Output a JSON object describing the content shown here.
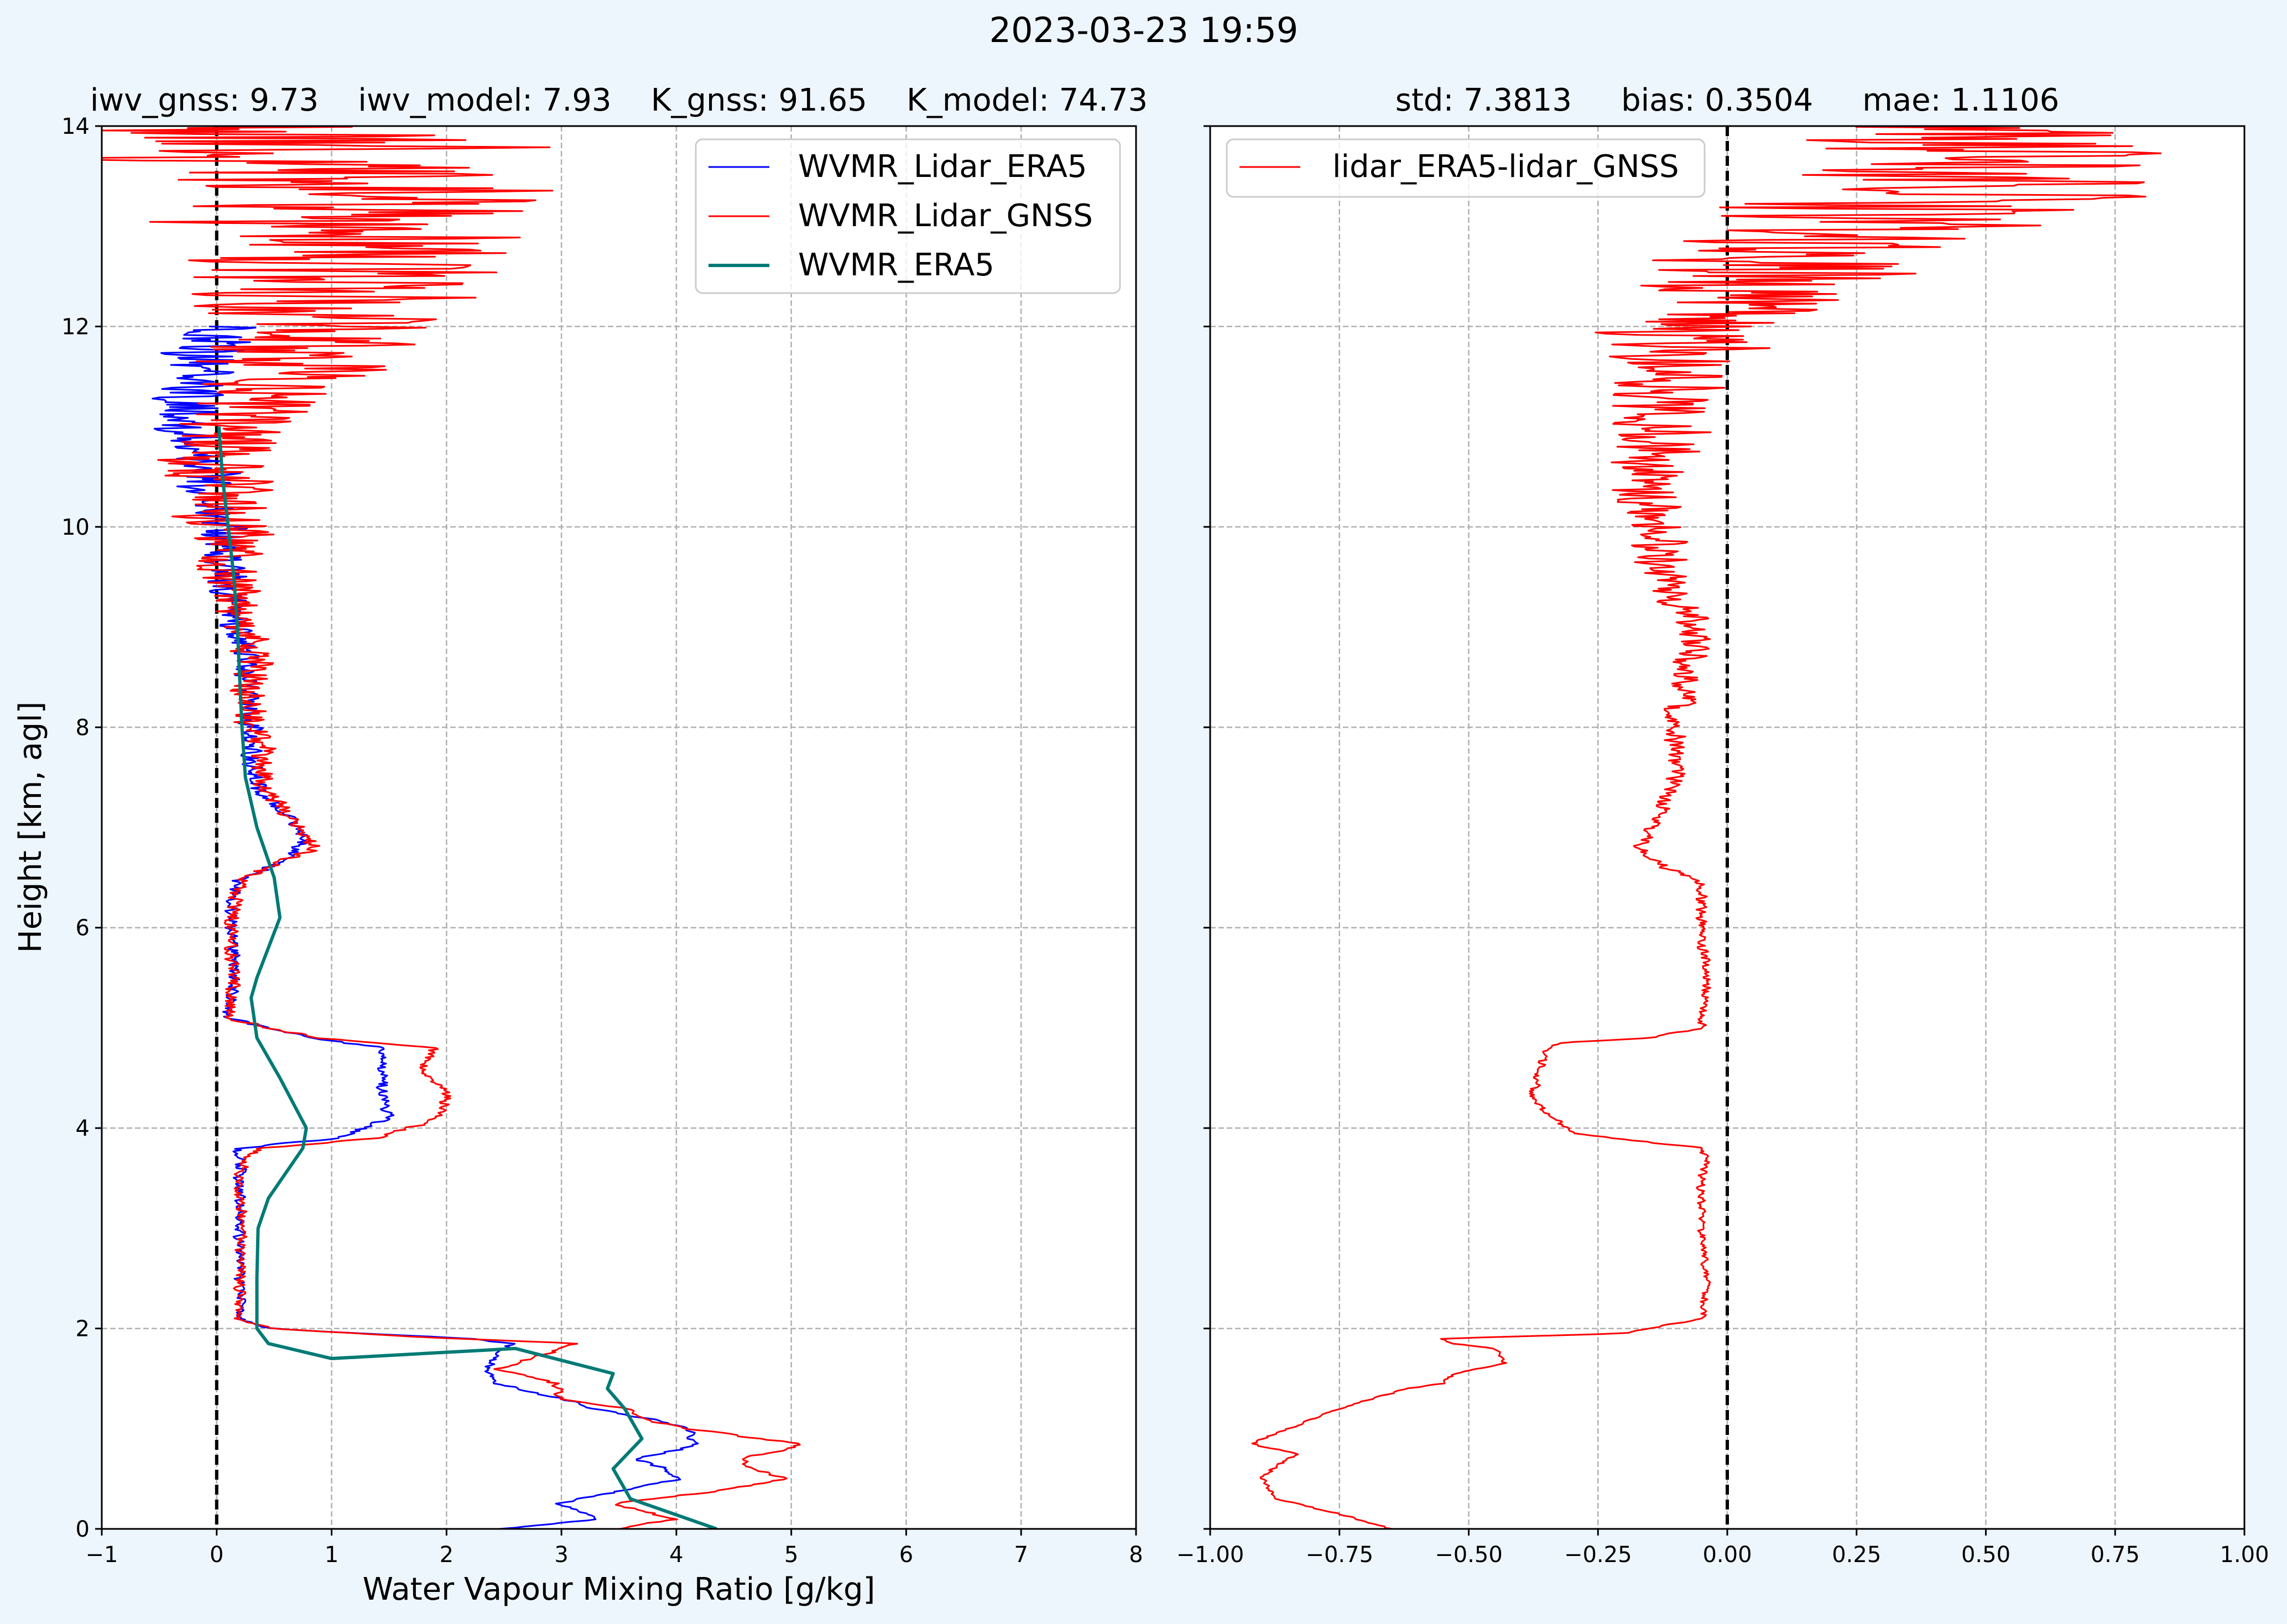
{
  "figure_title": "2023-03-23 19:59",
  "background_color": "#eef6fd",
  "chart_data": [
    {
      "type": "line",
      "title": "iwv_gnss: 9.73    iwv_model: 7.93    K_gnss: 91.65    K_model: 74.73",
      "xlabel": "Water Vapour Mixing Ratio [g/kg]",
      "ylabel": "Height [km, agl]",
      "xlim": [
        -1,
        8
      ],
      "ylim": [
        0,
        14
      ],
      "xticks": [
        -1,
        0,
        1,
        2,
        3,
        4,
        5,
        6,
        7,
        8
      ],
      "xtick_labels": [
        "−1",
        "0",
        "1",
        "2",
        "3",
        "4",
        "5",
        "6",
        "7",
        "8"
      ],
      "yticks": [
        0,
        2,
        4,
        6,
        8,
        10,
        12,
        14
      ],
      "ytick_labels": [
        "0",
        "2",
        "4",
        "6",
        "8",
        "10",
        "12",
        "14"
      ],
      "grid": true,
      "reference_line_x": 0,
      "legend_position": "top-right",
      "series": [
        {
          "name": "WVMR_Lidar_ERA5",
          "color": "#0000ff",
          "noisy": true,
          "noise_amp_by_height": [
            [
              0,
              0.04
            ],
            [
              2,
              0.04
            ],
            [
              5,
              0.05
            ],
            [
              7,
              0.06
            ],
            [
              9,
              0.12
            ],
            [
              10.5,
              0.25
            ],
            [
              12,
              0.35
            ],
            [
              14,
              0.5
            ]
          ],
          "x": [
            2.45,
            3.35,
            2.95,
            3.6,
            4.05,
            3.9,
            3.65,
            4.05,
            4.15,
            4.1,
            3.75,
            3.3,
            3.0,
            2.45,
            2.35,
            2.55,
            2.2,
            0.45,
            0.2,
            0.2,
            0.2,
            0.2,
            0.2,
            0.2,
            1.05,
            1.5,
            1.45,
            1.45,
            1.45,
            0.8,
            0.1,
            0.15,
            0.12,
            0.15,
            0.2,
            0.35,
            0.65,
            0.75,
            0.55,
            0.35,
            0.3,
            0.3,
            0.25,
            0.25,
            0.15,
            0.1,
            0.05,
            -0.1,
            -0.25,
            -0.2,
            0.0
          ],
          "y": [
            0.0,
            0.1,
            0.25,
            0.4,
            0.5,
            0.6,
            0.7,
            0.8,
            0.85,
            1.0,
            1.1,
            1.2,
            1.3,
            1.45,
            1.6,
            1.85,
            1.9,
            2.0,
            2.1,
            2.5,
            3.0,
            3.5,
            3.7,
            3.8,
            3.9,
            4.1,
            4.35,
            4.6,
            4.8,
            4.9,
            5.1,
            5.5,
            6.0,
            6.3,
            6.5,
            6.55,
            6.7,
            6.9,
            7.2,
            7.4,
            7.8,
            8.0,
            8.3,
            8.7,
            9.0,
            9.5,
            10.0,
            10.5,
            11.0,
            11.5,
            12.0
          ]
        },
        {
          "name": "WVMR_Lidar_GNSS",
          "color": "#ff0000",
          "noisy": true,
          "noise_amp_by_height": [
            [
              0,
              0.04
            ],
            [
              2,
              0.04
            ],
            [
              5,
              0.05
            ],
            [
              7,
              0.07
            ],
            [
              9,
              0.2
            ],
            [
              10.5,
              0.45
            ],
            [
              11.8,
              0.85
            ],
            [
              12.5,
              1.3
            ],
            [
              14,
              1.9
            ]
          ],
          "x": [
            3.5,
            4.0,
            3.45,
            4.5,
            4.95,
            4.65,
            4.55,
            5.0,
            5.05,
            4.1,
            3.7,
            3.55,
            3.0,
            2.95,
            2.45,
            3.15,
            2.05,
            0.45,
            0.2,
            0.2,
            0.22,
            0.2,
            0.25,
            0.4,
            1.4,
            1.95,
            2.0,
            1.8,
            1.9,
            0.85,
            0.1,
            0.15,
            0.12,
            0.15,
            0.25,
            0.35,
            0.85,
            0.8,
            0.55,
            0.4,
            0.4,
            0.3,
            0.25,
            0.3,
            0.2,
            0.1,
            0.1,
            -0.05,
            0.15,
            0.55,
            0.9,
            1.1,
            1.2,
            0.9,
            0.9
          ],
          "y": [
            0.0,
            0.1,
            0.25,
            0.4,
            0.5,
            0.6,
            0.7,
            0.8,
            0.85,
            1.0,
            1.1,
            1.2,
            1.3,
            1.45,
            1.6,
            1.85,
            1.9,
            2.0,
            2.1,
            2.5,
            3.0,
            3.5,
            3.7,
            3.8,
            3.9,
            4.1,
            4.35,
            4.6,
            4.8,
            4.9,
            5.1,
            5.5,
            6.0,
            6.3,
            6.5,
            6.55,
            6.8,
            6.9,
            7.2,
            7.4,
            7.8,
            8.0,
            8.3,
            8.7,
            9.0,
            9.5,
            10.0,
            10.5,
            11.0,
            11.5,
            12.0,
            12.5,
            13.0,
            13.5,
            14.0
          ]
        },
        {
          "name": "WVMR_ERA5",
          "color": "#007a75",
          "noisy": false,
          "x": [
            4.35,
            3.6,
            3.45,
            3.7,
            3.55,
            3.4,
            3.45,
            2.6,
            1.0,
            0.45,
            0.35,
            0.35,
            0.36,
            0.45,
            0.75,
            0.78,
            0.55,
            0.35,
            0.3,
            0.35,
            0.45,
            0.55,
            0.5,
            0.35,
            0.25,
            0.22,
            0.2,
            0.18,
            0.15,
            0.1,
            0.05,
            0.02
          ],
          "y": [
            0.0,
            0.3,
            0.6,
            0.9,
            1.2,
            1.4,
            1.55,
            1.8,
            1.7,
            1.85,
            2.0,
            2.5,
            3.0,
            3.3,
            3.8,
            4.0,
            4.5,
            4.9,
            5.3,
            5.5,
            5.8,
            6.1,
            6.5,
            7.0,
            7.5,
            8.0,
            8.5,
            9.0,
            9.5,
            10.0,
            10.5,
            11.0
          ]
        }
      ]
    },
    {
      "type": "line",
      "title": "std: 7.3813     bias: 0.3504     mae: 1.1106",
      "xlabel": "",
      "ylabel": "",
      "xlim": [
        -1.0,
        1.0
      ],
      "ylim": [
        0,
        14
      ],
      "xticks": [
        -1.0,
        -0.75,
        -0.5,
        -0.25,
        0.0,
        0.25,
        0.5,
        0.75,
        1.0
      ],
      "xtick_labels": [
        "−1.00",
        "−0.75",
        "−0.50",
        "−0.25",
        "0.00",
        "0.25",
        "0.50",
        "0.75",
        "1.00"
      ],
      "yticks": [
        0,
        2,
        4,
        6,
        8,
        10,
        12,
        14
      ],
      "ytick_labels": [],
      "grid": true,
      "reference_line_x": 0,
      "legend_position": "top-left",
      "series": [
        {
          "name": "lidar_ERA5-lidar_GNSS",
          "color": "#ff0000",
          "noisy": true,
          "noise_amp_by_height": [
            [
              0,
              0.005
            ],
            [
              2,
              0.006
            ],
            [
              5,
              0.008
            ],
            [
              7,
              0.012
            ],
            [
              9,
              0.03
            ],
            [
              10.5,
              0.07
            ],
            [
              11.7,
              0.12
            ],
            [
              12.5,
              0.25
            ],
            [
              14,
              0.4
            ]
          ],
          "x": [
            -0.65,
            -0.75,
            -0.87,
            -0.9,
            -0.88,
            -0.83,
            -0.92,
            -0.85,
            -0.75,
            -0.62,
            -0.55,
            -0.53,
            -0.43,
            -0.45,
            -0.53,
            -0.55,
            -0.2,
            -0.05,
            -0.04,
            -0.05,
            -0.05,
            -0.04,
            -0.05,
            -0.3,
            -0.38,
            -0.36,
            -0.35,
            -0.33,
            -0.15,
            -0.05,
            -0.04,
            -0.05,
            -0.05,
            -0.05,
            -0.12,
            -0.17,
            -0.13,
            -0.1,
            -0.1,
            -0.08,
            -0.06,
            -0.1,
            -0.12,
            -0.15,
            -0.15,
            -0.12,
            -0.1,
            -0.05,
            0.1,
            0.25,
            0.5,
            0.55
          ],
          "y": [
            0.0,
            0.15,
            0.3,
            0.5,
            0.6,
            0.75,
            0.85,
            1.0,
            1.2,
            1.4,
            1.45,
            1.55,
            1.65,
            1.8,
            1.85,
            1.9,
            1.95,
            2.1,
            2.5,
            3.0,
            3.5,
            3.7,
            3.8,
            3.95,
            4.3,
            4.6,
            4.75,
            4.85,
            4.9,
            5.0,
            5.5,
            6.0,
            6.3,
            6.45,
            6.6,
            6.8,
            7.1,
            7.5,
            8.0,
            8.5,
            9.0,
            9.3,
            9.6,
            10.0,
            10.5,
            11.0,
            11.5,
            12.0,
            12.5,
            13.0,
            13.5,
            14.0
          ]
        }
      ]
    }
  ]
}
